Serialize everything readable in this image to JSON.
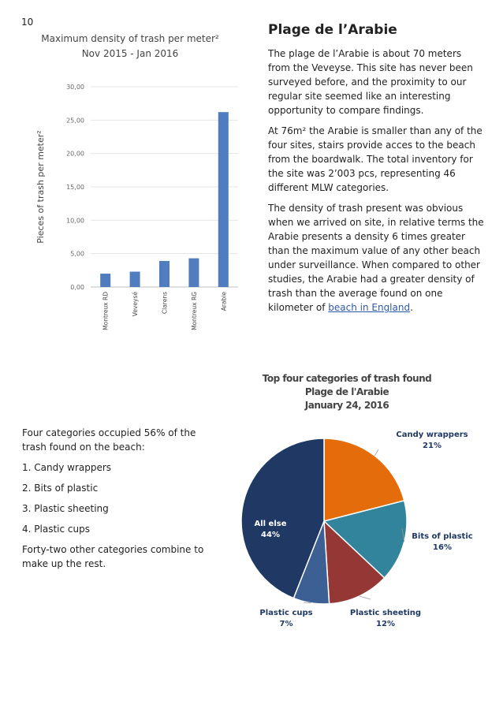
{
  "page_number": "10",
  "article": {
    "heading": "Plage de l’Arabie",
    "p1": "The plage de l’Arabie is about 70 meters from the Veveyse.  This site has never been surveyed before, and the proximity to our regular site seemed like an interesting opportunity to compare findings.",
    "p2": "At 76m² the Arabie is smaller than any of the four sites, stairs provide acces to the beach from the boardwalk.  The total inventory for the site was 2’003 pcs, representing 46 different MLW categories.",
    "p3_before_link": "The density of trash present was obvious when we arrived on site, in relative terms the Arabie presents a density 6 times greater than the maximum value of any other beach under surveillance. When compared to other studies, the Arabie had a greater density of trash than the average found on one kilometer of ",
    "p3_link": "beach in England",
    "p3_after_link": "."
  },
  "summary": {
    "intro": "Four categories occupied 56% of the trash found on the beach:",
    "items": [
      "1.  Candy wrappers",
      "2.  Bits of plastic",
      "3.  Plastic sheeting",
      "4.  Plastic cups"
    ],
    "outro": "Forty-two other categories combine to make up the rest."
  },
  "chart_data": [
    {
      "type": "bar",
      "title": "Maximum density of trash per meter²",
      "subtitle": "Nov 2015 - Jan 2016",
      "ylabel": "Pieces of trash per meter²",
      "xlabel": "",
      "categories": [
        "Montreux RD",
        "Veveysé",
        "Clarens",
        "Montreux RG",
        "Arabie"
      ],
      "values": [
        2.0,
        2.3,
        3.9,
        4.3,
        26.2
      ],
      "ylim": [
        0,
        30
      ],
      "yticks": [
        "0,00",
        "5,00",
        "10,00",
        "15,00",
        "20,00",
        "25,00",
        "30,00"
      ],
      "grid": true,
      "color": "#4f7dbf"
    },
    {
      "type": "pie",
      "title": "Top four categories of trash found",
      "subtitle1": "Plage de l'Arabie",
      "subtitle2": "January 24, 2016",
      "slices": [
        {
          "label": "Candy wrappers",
          "value": 21,
          "pct": "21%",
          "color": "#e46c0a"
        },
        {
          "label": "Bits of plastic",
          "value": 16,
          "pct": "16%",
          "color": "#31849b"
        },
        {
          "label": "Plastic sheeting",
          "value": 12,
          "pct": "12%",
          "color": "#953735"
        },
        {
          "label": "Plastic cups",
          "value": 7,
          "pct": "7%",
          "color": "#3c5f94"
        },
        {
          "label": "All else",
          "value": 44,
          "pct": "44%",
          "color": "#1f3864"
        }
      ]
    }
  ]
}
